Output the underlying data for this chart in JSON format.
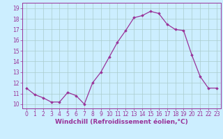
{
  "x": [
    0,
    1,
    2,
    3,
    4,
    5,
    6,
    7,
    8,
    9,
    10,
    11,
    12,
    13,
    14,
    15,
    16,
    17,
    18,
    19,
    20,
    21,
    22,
    23
  ],
  "y": [
    11.5,
    10.9,
    10.6,
    10.2,
    10.2,
    11.1,
    10.8,
    10.0,
    12.0,
    13.0,
    14.4,
    15.8,
    16.9,
    18.1,
    18.3,
    18.7,
    18.5,
    17.5,
    17.0,
    16.9,
    14.6,
    12.6,
    11.5,
    11.5
  ],
  "line_color": "#993399",
  "marker": "D",
  "marker_size": 1.8,
  "bg_color": "#cceeff",
  "grid_color": "#aacccc",
  "xlabel": "Windchill (Refroidissement éolien,°C)",
  "xlim": [
    -0.5,
    23.5
  ],
  "ylim": [
    9.6,
    19.5
  ],
  "yticks": [
    10,
    11,
    12,
    13,
    14,
    15,
    16,
    17,
    18,
    19
  ],
  "xticks": [
    0,
    1,
    2,
    3,
    4,
    5,
    6,
    7,
    8,
    9,
    10,
    11,
    12,
    13,
    14,
    15,
    16,
    17,
    18,
    19,
    20,
    21,
    22,
    23
  ],
  "tick_label_fontsize": 5.5,
  "xlabel_fontsize": 6.5,
  "linewidth": 0.9
}
